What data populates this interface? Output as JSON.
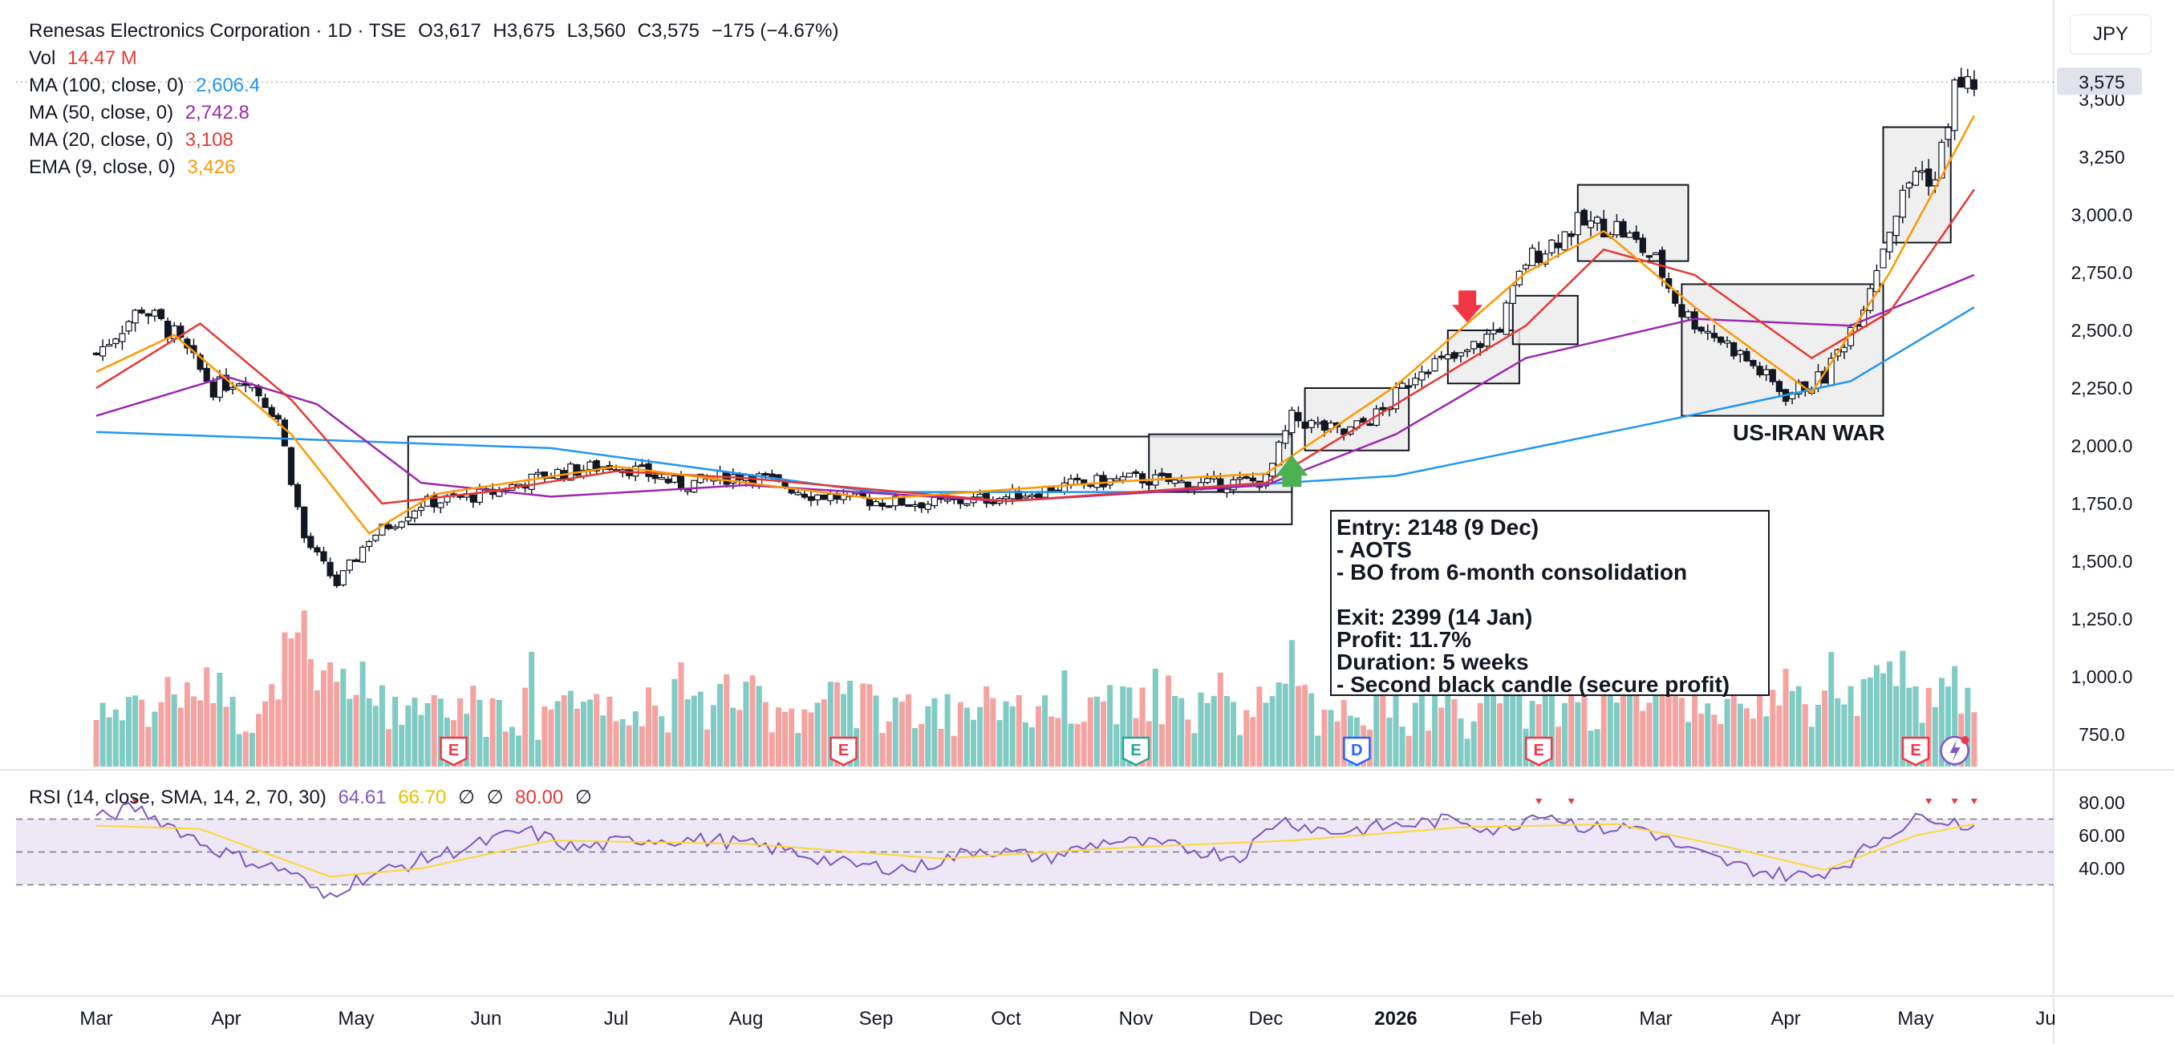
{
  "header": {
    "title": "Renesas Electronics Corporation · 1D · TSE",
    "open": "O3,617",
    "high": "H3,675",
    "low": "L3,560",
    "close": "C3,575",
    "change": "−175 (−4.67%)",
    "vol_label": "Vol",
    "vol_value": "14.47 M",
    "indicators": [
      {
        "label": "MA (100, close, 0)",
        "value": "2,606.4",
        "color": "#2196f3"
      },
      {
        "label": "MA (50, close, 0)",
        "value": "2,742.8",
        "color": "#9c27b0"
      },
      {
        "label": "MA (20, close, 0)",
        "value": "3,108",
        "color": "#e53935"
      },
      {
        "label": "EMA (9, close, 0)",
        "value": "3,426",
        "color": "#ff9800"
      }
    ]
  },
  "currency": "JPY",
  "rsi_legend": {
    "label": "RSI (14, close, SMA, 14, 2, 70, 30)",
    "value": "64.61",
    "sma": "66.70",
    "na1": "∅",
    "na2": "∅",
    "upper": "80.00",
    "na3": "∅",
    "rsi_color": "#7e57c2",
    "sma_color": "#fdd835",
    "upper_color": "#e53935"
  },
  "annotation": {
    "lines": [
      "Entry: 2148 (9 Dec)",
      "- AOTS",
      "- BO from 6-month consolidation",
      "",
      "Exit: 2399 (14 Jan)",
      "Profit: 11.7%",
      "Duration: 5 weeks",
      "- Second black candle (secure profit)"
    ]
  },
  "war_label": "US-IRAN WAR",
  "colors": {
    "up": "#26a69a",
    "down": "#ef5350",
    "vol_up": "#80cbc4",
    "vol_down": "#f4a3a0",
    "rsi_band": "#ede7f6",
    "buy_arrow": "#4caf50",
    "sell_arrow": "#f23645"
  },
  "events": [
    "E",
    "E",
    "E",
    "D",
    "E",
    "E"
  ],
  "chart_data": {
    "type": "candlestick",
    "title": "Renesas Electronics Corporation · 1D · TSE",
    "x_axis": [
      "Mar",
      "Apr",
      "May",
      "Jun",
      "Jul",
      "Aug",
      "Sep",
      "Oct",
      "Nov",
      "Dec",
      "2026",
      "Feb",
      "Mar",
      "Apr",
      "May",
      "Ju"
    ],
    "y_ticks": [
      "3,500",
      "3,250",
      "3,000.0",
      "2,750.0",
      "2,500.0",
      "2,250.0",
      "2,000.0",
      "1,750.0",
      "1,500.0",
      "1,250.0",
      "1,000.0",
      "750.0"
    ],
    "rsi_ticks": [
      "80.00",
      "60.00",
      "40.00"
    ],
    "last_price": "3,575",
    "ylim": [
      600,
      3700
    ],
    "rsi_ylim": [
      22,
      86
    ],
    "price_path": [
      {
        "m": 0.0,
        "p": 2400
      },
      {
        "m": 0.35,
        "p": 2600
      },
      {
        "m": 0.6,
        "p": 2480
      },
      {
        "m": 0.9,
        "p": 2250
      },
      {
        "m": 1.15,
        "p": 2300
      },
      {
        "m": 1.4,
        "p": 2120
      },
      {
        "m": 1.6,
        "p": 1600
      },
      {
        "m": 1.85,
        "p": 1400
      },
      {
        "m": 2.1,
        "p": 1600
      },
      {
        "m": 2.5,
        "p": 1750
      },
      {
        "m": 3.0,
        "p": 1790
      },
      {
        "m": 3.5,
        "p": 1880
      },
      {
        "m": 4.0,
        "p": 1920
      },
      {
        "m": 4.5,
        "p": 1830
      },
      {
        "m": 5.0,
        "p": 1880
      },
      {
        "m": 5.5,
        "p": 1790
      },
      {
        "m": 6.0,
        "p": 1760
      },
      {
        "m": 6.5,
        "p": 1750
      },
      {
        "m": 7.0,
        "p": 1780
      },
      {
        "m": 7.5,
        "p": 1830
      },
      {
        "m": 8.0,
        "p": 1860
      },
      {
        "m": 8.5,
        "p": 1830
      },
      {
        "m": 9.0,
        "p": 1850
      },
      {
        "m": 9.2,
        "p": 2120
      },
      {
        "m": 9.6,
        "p": 2050
      },
      {
        "m": 9.9,
        "p": 2150
      },
      {
        "m": 10.2,
        "p": 2350
      },
      {
        "m": 10.5,
        "p": 2380
      },
      {
        "m": 10.8,
        "p": 2520
      },
      {
        "m": 11.0,
        "p": 2800
      },
      {
        "m": 11.4,
        "p": 2960
      },
      {
        "m": 11.7,
        "p": 2950
      },
      {
        "m": 12.0,
        "p": 2800
      },
      {
        "m": 12.2,
        "p": 2580
      },
      {
        "m": 12.6,
        "p": 2420
      },
      {
        "m": 13.0,
        "p": 2220
      },
      {
        "m": 13.3,
        "p": 2300
      },
      {
        "m": 13.6,
        "p": 2620
      },
      {
        "m": 13.8,
        "p": 2950
      },
      {
        "m": 14.0,
        "p": 3200
      },
      {
        "m": 14.15,
        "p": 3150
      },
      {
        "m": 14.3,
        "p": 3550
      },
      {
        "m": 14.45,
        "p": 3575
      }
    ],
    "moving_averages": [
      {
        "name": "MA (100, close, 0)",
        "color": "#2196f3",
        "path": [
          [
            0,
            2060
          ],
          [
            3.5,
            1990
          ],
          [
            6,
            1800
          ],
          [
            8,
            1800
          ],
          [
            10,
            1870
          ],
          [
            12,
            2100
          ],
          [
            13.5,
            2280
          ],
          [
            14.45,
            2600
          ]
        ]
      },
      {
        "name": "MA (50, close, 0)",
        "color": "#9c27b0",
        "path": [
          [
            0,
            2130
          ],
          [
            1.0,
            2300
          ],
          [
            1.7,
            2180
          ],
          [
            2.5,
            1840
          ],
          [
            3.5,
            1780
          ],
          [
            5,
            1830
          ],
          [
            7,
            1760
          ],
          [
            9,
            1830
          ],
          [
            10,
            2050
          ],
          [
            11,
            2380
          ],
          [
            12.3,
            2550
          ],
          [
            13.5,
            2520
          ],
          [
            14.45,
            2740
          ]
        ]
      },
      {
        "name": "MA (20, close, 0)",
        "color": "#e53935",
        "path": [
          [
            0,
            2250
          ],
          [
            0.8,
            2530
          ],
          [
            1.5,
            2200
          ],
          [
            2.2,
            1750
          ],
          [
            3,
            1800
          ],
          [
            4,
            1890
          ],
          [
            5,
            1860
          ],
          [
            7,
            1760
          ],
          [
            9,
            1840
          ],
          [
            10,
            2180
          ],
          [
            11,
            2520
          ],
          [
            11.6,
            2850
          ],
          [
            12.3,
            2740
          ],
          [
            13.2,
            2380
          ],
          [
            13.8,
            2580
          ],
          [
            14.45,
            3110
          ]
        ]
      },
      {
        "name": "EMA (9, close, 0)",
        "color": "#ff9800",
        "path": [
          [
            0,
            2320
          ],
          [
            0.6,
            2480
          ],
          [
            1.5,
            2050
          ],
          [
            2.1,
            1620
          ],
          [
            2.6,
            1790
          ],
          [
            4,
            1910
          ],
          [
            6,
            1770
          ],
          [
            8,
            1850
          ],
          [
            9,
            1880
          ],
          [
            10,
            2260
          ],
          [
            11.0,
            2750
          ],
          [
            11.6,
            2930
          ],
          [
            12.3,
            2600
          ],
          [
            13.2,
            2230
          ],
          [
            13.8,
            2750
          ],
          [
            14.45,
            3430
          ]
        ]
      }
    ],
    "rsi": [
      {
        "m": 0.0,
        "v": 70
      },
      {
        "m": 0.3,
        "v": 77
      },
      {
        "m": 0.6,
        "v": 65
      },
      {
        "m": 0.9,
        "v": 52
      },
      {
        "m": 1.2,
        "v": 44
      },
      {
        "m": 1.5,
        "v": 38
      },
      {
        "m": 1.75,
        "v": 22
      },
      {
        "m": 2.0,
        "v": 33
      },
      {
        "m": 2.5,
        "v": 45
      },
      {
        "m": 3.0,
        "v": 56
      },
      {
        "m": 3.3,
        "v": 63
      },
      {
        "m": 3.7,
        "v": 52
      },
      {
        "m": 4.2,
        "v": 58
      },
      {
        "m": 4.8,
        "v": 57
      },
      {
        "m": 5.3,
        "v": 51
      },
      {
        "m": 5.8,
        "v": 42
      },
      {
        "m": 6.3,
        "v": 40
      },
      {
        "m": 6.8,
        "v": 52
      },
      {
        "m": 7.3,
        "v": 46
      },
      {
        "m": 7.8,
        "v": 57
      },
      {
        "m": 8.3,
        "v": 53
      },
      {
        "m": 8.8,
        "v": 47
      },
      {
        "m": 9.1,
        "v": 70
      },
      {
        "m": 9.5,
        "v": 62
      },
      {
        "m": 10.0,
        "v": 66
      },
      {
        "m": 10.5,
        "v": 70
      },
      {
        "m": 10.8,
        "v": 62
      },
      {
        "m": 11.1,
        "v": 75
      },
      {
        "m": 11.5,
        "v": 64
      },
      {
        "m": 11.9,
        "v": 65
      },
      {
        "m": 12.2,
        "v": 52
      },
      {
        "m": 12.6,
        "v": 42
      },
      {
        "m": 12.9,
        "v": 37
      },
      {
        "m": 13.2,
        "v": 35
      },
      {
        "m": 13.5,
        "v": 45
      },
      {
        "m": 13.8,
        "v": 62
      },
      {
        "m": 14.1,
        "v": 73
      },
      {
        "m": 14.3,
        "v": 68
      },
      {
        "m": 14.45,
        "v": 65
      }
    ],
    "rsi_sma": [
      [
        0,
        66
      ],
      [
        0.8,
        64
      ],
      [
        1.8,
        35
      ],
      [
        2.5,
        40
      ],
      [
        3.5,
        57
      ],
      [
        5,
        55
      ],
      [
        6.5,
        46
      ],
      [
        8,
        53
      ],
      [
        9.2,
        57
      ],
      [
        10.5,
        65
      ],
      [
        11.7,
        67
      ],
      [
        12.5,
        54
      ],
      [
        13.3,
        39
      ],
      [
        14.0,
        60
      ],
      [
        14.45,
        67
      ]
    ],
    "boxes": [
      {
        "m0": 2.4,
        "m1": 9.2,
        "p0": 1660,
        "p1": 2040,
        "shaded": false
      },
      {
        "m0": 8.1,
        "m1": 9.2,
        "p0": 1800,
        "p1": 2050,
        "shaded": true
      },
      {
        "m0": 9.3,
        "m1": 10.1,
        "p0": 1980,
        "p1": 2250,
        "shaded": true
      },
      {
        "m0": 10.4,
        "m1": 10.95,
        "p0": 2270,
        "p1": 2500,
        "shaded": true
      },
      {
        "m0": 10.9,
        "m1": 11.4,
        "p0": 2440,
        "p1": 2650,
        "shaded": true
      },
      {
        "m0": 11.4,
        "m1": 12.25,
        "p0": 2800,
        "p1": 3130,
        "shaded": true
      },
      {
        "m0": 12.2,
        "m1": 13.75,
        "p0": 2130,
        "p1": 2700,
        "shaded": true
      },
      {
        "m0": 13.75,
        "m1": 14.27,
        "p0": 2880,
        "p1": 3380,
        "shaded": true
      }
    ]
  }
}
